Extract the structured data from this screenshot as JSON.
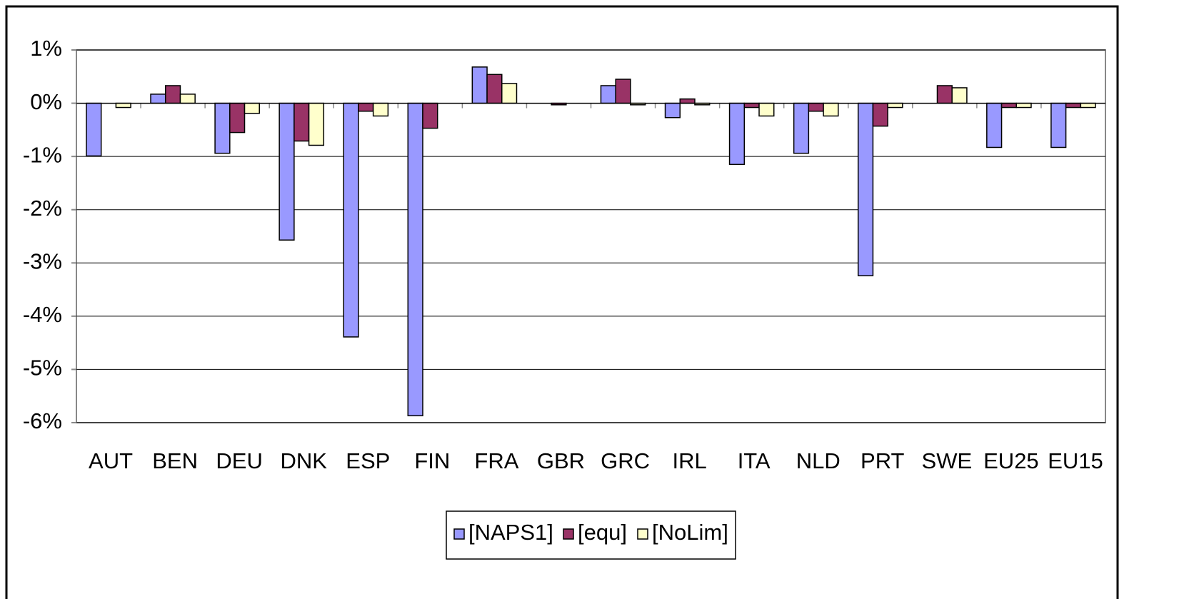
{
  "chart_data": {
    "type": "bar",
    "categories": [
      "AUT",
      "BEN",
      "DEU",
      "DNK",
      "ESP",
      "FIN",
      "FRA",
      "GBR",
      "GRC",
      "IRL",
      "ITA",
      "NLD",
      "PRT",
      "SWE",
      "EU25",
      "EU15"
    ],
    "series": [
      {
        "name": "[NAPS1]",
        "color": "#9999ff",
        "values": [
          -0.99,
          0.17,
          -0.94,
          -2.57,
          -4.39,
          -5.87,
          0.68,
          0,
          0.33,
          -0.27,
          -1.15,
          -0.94,
          -3.24,
          0,
          -0.83,
          -0.83
        ]
      },
      {
        "name": "[equ]",
        "color": "#993366",
        "values": [
          0,
          0.33,
          -0.55,
          -0.71,
          -0.15,
          -0.47,
          0.54,
          -0.03,
          0.45,
          0.08,
          -0.08,
          -0.15,
          -0.43,
          0.33,
          -0.08,
          -0.08
        ]
      },
      {
        "name": "[NoLim]",
        "color": "#ffffcc",
        "values": [
          -0.08,
          0.17,
          -0.19,
          -0.79,
          -0.24,
          0,
          0.37,
          0,
          -0.03,
          -0.03,
          -0.24,
          -0.24,
          -0.08,
          0.29,
          -0.08,
          -0.08
        ]
      }
    ],
    "ylim": [
      -6,
      1
    ],
    "yticks": [
      {
        "value": 1,
        "label": "1%"
      },
      {
        "value": 0,
        "label": "0%"
      },
      {
        "value": -1,
        "label": "-1%"
      },
      {
        "value": -2,
        "label": "-2%"
      },
      {
        "value": -3,
        "label": "-3%"
      },
      {
        "value": -4,
        "label": "-4%"
      },
      {
        "value": -5,
        "label": "-5%"
      },
      {
        "value": -6,
        "label": "-6%"
      }
    ],
    "grid": true
  }
}
